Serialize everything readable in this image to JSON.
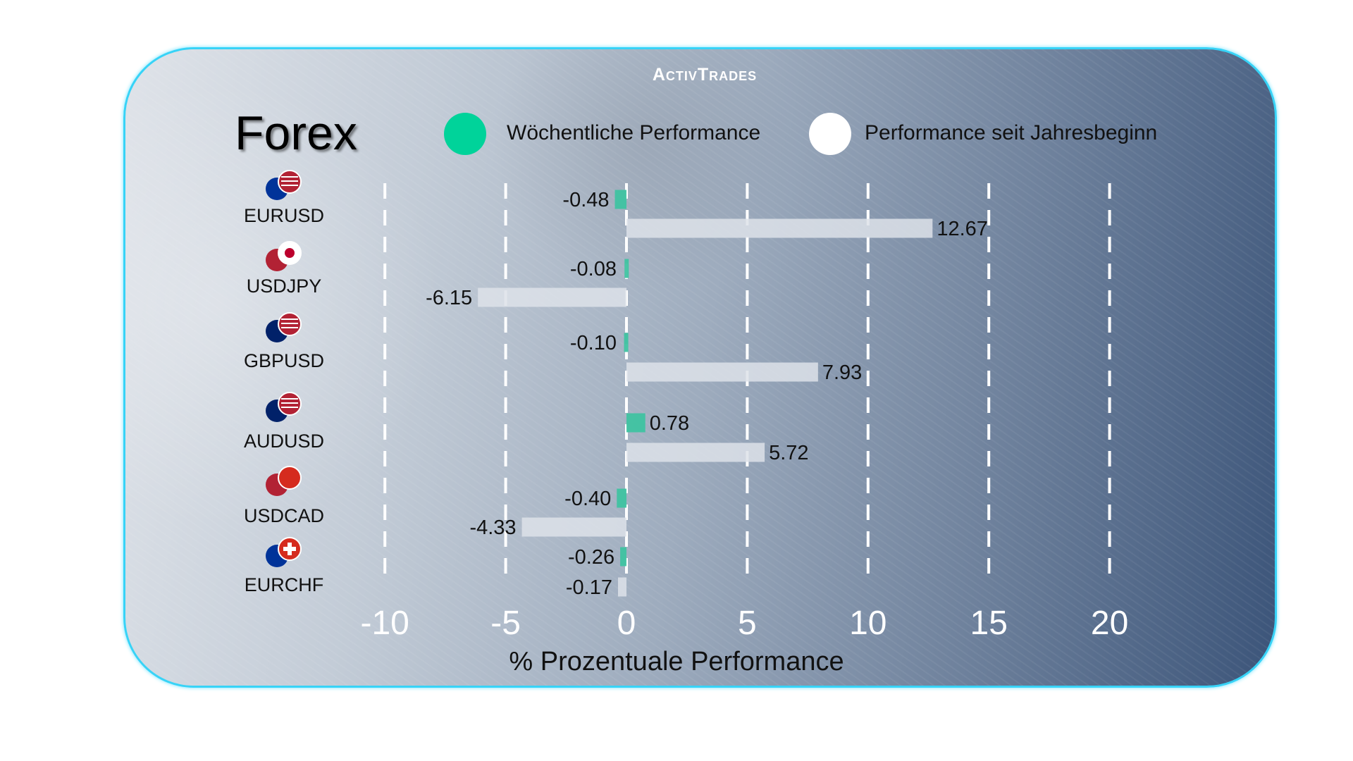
{
  "brand": "ActivTrades",
  "title": "Forex",
  "legend": [
    {
      "label": "Wöchentliche Performance",
      "color": "#00d39a"
    },
    {
      "label": "Performance seit Jahresbeginn",
      "color": "#ffffff"
    }
  ],
  "chart_data": {
    "type": "bar",
    "orientation": "horizontal",
    "categories": [
      "EURUSD",
      "USDJPY",
      "GBPUSD",
      "AUDUSD",
      "USDCAD",
      "EURCHF"
    ],
    "series": [
      {
        "name": "Wöchentliche Performance",
        "color": "#3fc3a1",
        "values": [
          -0.48,
          -0.08,
          -0.1,
          0.78,
          -0.4,
          -0.26
        ]
      },
      {
        "name": "Performance seit Jahresbeginn",
        "color": "#dde2e9",
        "values": [
          12.67,
          -6.15,
          7.93,
          5.72,
          -4.33,
          -0.17
        ]
      }
    ],
    "value_labels": [
      [
        "-0.48",
        "-0.08",
        "-0.10",
        "0.78",
        "-0.40",
        "-0.26"
      ],
      [
        "12.67",
        "-6.15",
        "7.93",
        "5.72",
        "-4.33",
        "-0.17"
      ]
    ],
    "xlabel": "% Prozentuale Performance",
    "xlim": [
      -10,
      20
    ],
    "xticks": [
      "-10",
      "-5",
      "0",
      "5",
      "10",
      "15",
      "20"
    ],
    "grid": "vertical dashed white",
    "legend_position": "top"
  }
}
